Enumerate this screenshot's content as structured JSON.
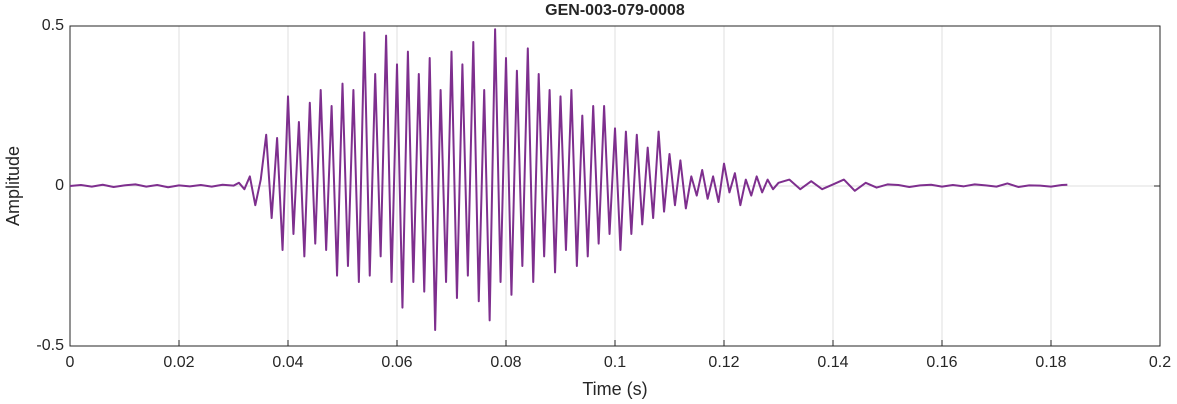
{
  "chart_data": {
    "type": "line",
    "title": "GEN-003-079-0008",
    "xlabel": "Time (s)",
    "ylabel": "Amplitude",
    "color": "#7E2F8E",
    "grid": true,
    "xlim": [
      0,
      0.2
    ],
    "xticks": [
      0,
      0.02,
      0.04,
      0.06,
      0.08,
      0.1,
      0.12,
      0.14,
      0.16,
      0.18,
      0.2
    ],
    "ylim": [
      -0.5,
      0.5
    ],
    "yticks": [
      -0.5,
      0,
      0.5
    ],
    "x": [
      0,
      0.002,
      0.004,
      0.006,
      0.008,
      0.01,
      0.012,
      0.014,
      0.016,
      0.018,
      0.02,
      0.022,
      0.024,
      0.026,
      0.028,
      0.03,
      0.031,
      0.032,
      0.033,
      0.034,
      0.035,
      0.036,
      0.037,
      0.038,
      0.039,
      0.04,
      0.041,
      0.042,
      0.043,
      0.044,
      0.045,
      0.046,
      0.047,
      0.048,
      0.049,
      0.05,
      0.051,
      0.052,
      0.053,
      0.054,
      0.055,
      0.056,
      0.057,
      0.058,
      0.059,
      0.06,
      0.061,
      0.062,
      0.063,
      0.064,
      0.065,
      0.066,
      0.067,
      0.068,
      0.069,
      0.07,
      0.071,
      0.072,
      0.073,
      0.074,
      0.075,
      0.076,
      0.077,
      0.078,
      0.079,
      0.08,
      0.081,
      0.082,
      0.083,
      0.084,
      0.085,
      0.086,
      0.087,
      0.088,
      0.089,
      0.09,
      0.091,
      0.092,
      0.093,
      0.094,
      0.095,
      0.096,
      0.097,
      0.098,
      0.099,
      0.1,
      0.101,
      0.102,
      0.103,
      0.104,
      0.105,
      0.106,
      0.107,
      0.108,
      0.109,
      0.11,
      0.111,
      0.112,
      0.113,
      0.114,
      0.115,
      0.116,
      0.117,
      0.118,
      0.119,
      0.12,
      0.121,
      0.122,
      0.123,
      0.124,
      0.125,
      0.126,
      0.127,
      0.128,
      0.129,
      0.13,
      0.132,
      0.134,
      0.136,
      0.138,
      0.14,
      0.142,
      0.144,
      0.146,
      0.148,
      0.15,
      0.152,
      0.154,
      0.156,
      0.158,
      0.16,
      0.162,
      0.164,
      0.166,
      0.168,
      0.17,
      0.172,
      0.174,
      0.176,
      0.178,
      0.18,
      0.182,
      0.183
    ],
    "values": [
      0,
      0.003,
      -0.002,
      0.004,
      -0.003,
      0.002,
      0.005,
      -0.002,
      0.003,
      -0.004,
      0.002,
      -0.001,
      0.003,
      -0.002,
      0.004,
      0.001,
      0.01,
      -0.01,
      0.03,
      -0.06,
      0.02,
      0.16,
      -0.1,
      0.15,
      -0.2,
      0.28,
      -0.15,
      0.2,
      -0.22,
      0.26,
      -0.18,
      0.3,
      -0.2,
      0.25,
      -0.28,
      0.32,
      -0.25,
      0.3,
      -0.3,
      0.48,
      -0.28,
      0.35,
      -0.22,
      0.47,
      -0.3,
      0.38,
      -0.38,
      0.42,
      -0.3,
      0.35,
      -0.33,
      0.4,
      -0.45,
      0.3,
      -0.3,
      0.42,
      -0.35,
      0.38,
      -0.28,
      0.45,
      -0.36,
      0.3,
      -0.42,
      0.49,
      -0.3,
      0.4,
      -0.34,
      0.36,
      -0.25,
      0.43,
      -0.3,
      0.35,
      -0.22,
      0.3,
      -0.27,
      0.28,
      -0.2,
      0.3,
      -0.25,
      0.22,
      -0.22,
      0.25,
      -0.18,
      0.25,
      -0.15,
      0.18,
      -0.2,
      0.17,
      -0.15,
      0.16,
      -0.12,
      0.12,
      -0.1,
      0.17,
      -0.08,
      0.1,
      -0.06,
      0.08,
      -0.07,
      0.03,
      -0.03,
      0.05,
      -0.04,
      0.03,
      -0.05,
      0.07,
      -0.02,
      0.04,
      -0.06,
      0.02,
      -0.03,
      0.03,
      -0.02,
      0.02,
      -0.01,
      0.01,
      0.02,
      -0.01,
      0.015,
      -0.01,
      0.005,
      0.02,
      -0.015,
      0.01,
      -0.005,
      0.005,
      0.003,
      -0.003,
      0.002,
      0.004,
      -0.002,
      0.003,
      -0.001,
      0.005,
      0.002,
      -0.002,
      0.008,
      -0.003,
      0.002,
      0.001,
      -0.002,
      0.003,
      0.004
    ]
  }
}
